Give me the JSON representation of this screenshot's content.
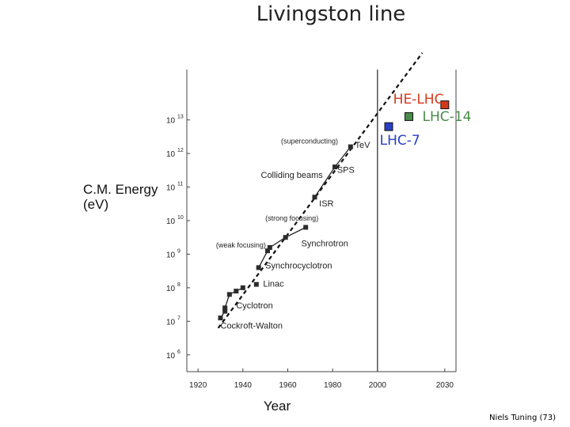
{
  "slide": {
    "footer": "Niels Tuning (73)"
  },
  "chart_data": {
    "type": "scatter",
    "title": "Livingston line",
    "xlabel": "Year",
    "ylabel_lines": [
      "C.M. Energy",
      "(eV)"
    ],
    "xlim": [
      1915,
      2035
    ],
    "ylim_log10": [
      5.5,
      14.5
    ],
    "x_ticks": [
      {
        "value": 1920,
        "label": "1920"
      },
      {
        "value": 1940,
        "label": "1940"
      },
      {
        "value": 1960,
        "label": "1960"
      },
      {
        "value": 1980,
        "label": "1980"
      },
      {
        "value": 2000,
        "label": "2000"
      },
      {
        "value": 2030,
        "label": "2030"
      }
    ],
    "y_ticks": [
      {
        "exp": 6,
        "label": "10",
        "sup": "6"
      },
      {
        "exp": 7,
        "label": "10",
        "sup": "7"
      },
      {
        "exp": 8,
        "label": "10",
        "sup": "8"
      },
      {
        "exp": 9,
        "label": "10",
        "sup": "9"
      },
      {
        "exp": 10,
        "label": "10",
        "sup": "10"
      },
      {
        "exp": 11,
        "label": "10",
        "sup": "11"
      },
      {
        "exp": 12,
        "label": "10",
        "sup": "12"
      },
      {
        "exp": 13,
        "label": "10",
        "sup": "13"
      }
    ],
    "divider_year": 2000,
    "series": [
      {
        "name": "Cockroft-Walton",
        "points": [
          [
            1930,
            7.1
          ],
          [
            1932,
            7.3
          ]
        ]
      },
      {
        "name": "Cyclotron",
        "points": [
          [
            1932,
            7.4
          ],
          [
            1934,
            7.8
          ],
          [
            1937,
            7.9
          ],
          [
            1940,
            8.0
          ]
        ]
      },
      {
        "name": "Linac",
        "points": [
          [
            1946,
            8.1
          ]
        ]
      },
      {
        "name": "Synchrocyclotron",
        "points": [
          [
            1947,
            8.6
          ],
          [
            1951,
            9.1
          ]
        ]
      },
      {
        "name": "Synchrotron",
        "points": [
          [
            1952,
            9.2
          ],
          [
            1959,
            9.5
          ],
          [
            1968,
            9.8
          ]
        ]
      },
      {
        "name": "Colliding beams",
        "points": [
          [
            1972,
            10.7
          ],
          [
            1981,
            11.6
          ],
          [
            1988,
            12.2
          ]
        ]
      }
    ],
    "extrapolation_line": {
      "style": "dashed",
      "from": [
        1929,
        6.8
      ],
      "to": [
        2020,
        15.0
      ]
    },
    "future_points": [
      {
        "name": "LHC-7",
        "year": 2005,
        "log_energy": 12.8,
        "color": "#2a3fc4"
      },
      {
        "name": "LHC-14",
        "year": 2014,
        "log_energy": 13.1,
        "color": "#4a8a4a"
      },
      {
        "name": "HE-LHC",
        "year": 2030,
        "log_energy": 13.45,
        "color": "#d33a1c"
      }
    ],
    "annotations": [
      {
        "text": "(superconducting)",
        "year": 1957,
        "log_energy": 12.3,
        "size": 9
      },
      {
        "text": "TeV",
        "year": 1990,
        "log_energy": 12.17,
        "size": 11
      },
      {
        "text": "SPS",
        "year": 1982,
        "log_energy": 11.42,
        "size": 11
      },
      {
        "text": "Colliding beams",
        "year": 1948,
        "log_energy": 11.27,
        "size": 11
      },
      {
        "text": "ISR",
        "year": 1974,
        "log_energy": 10.42,
        "size": 11
      },
      {
        "text": "(strong focusing)",
        "year": 1950,
        "log_energy": 10.0,
        "size": 9
      },
      {
        "text": "Synchrotron",
        "year": 1966,
        "log_energy": 9.24,
        "size": 11
      },
      {
        "text": "(weak focusing)",
        "year": 1928,
        "log_energy": 9.2,
        "size": 9
      },
      {
        "text": "Synchrocyclotron",
        "year": 1950,
        "log_energy": 8.58,
        "size": 11
      },
      {
        "text": "Linac",
        "year": 1949,
        "log_energy": 8.03,
        "size": 11
      },
      {
        "text": "Cyclotron",
        "year": 1937,
        "log_energy": 7.38,
        "size": 11
      },
      {
        "text": "Cockroft-Walton",
        "year": 1930,
        "log_energy": 6.78,
        "size": 11
      }
    ],
    "future_labels": [
      {
        "text": "HE-LHC",
        "year": 2007,
        "log_energy": 13.49,
        "color": "#d33a1c"
      },
      {
        "text": "LHC-14",
        "year": 2020,
        "log_energy": 12.97,
        "color": "#4a8a4a"
      },
      {
        "text": "LHC-7",
        "year": 2001,
        "log_energy": 12.26,
        "color": "#2a3fc4"
      }
    ]
  }
}
